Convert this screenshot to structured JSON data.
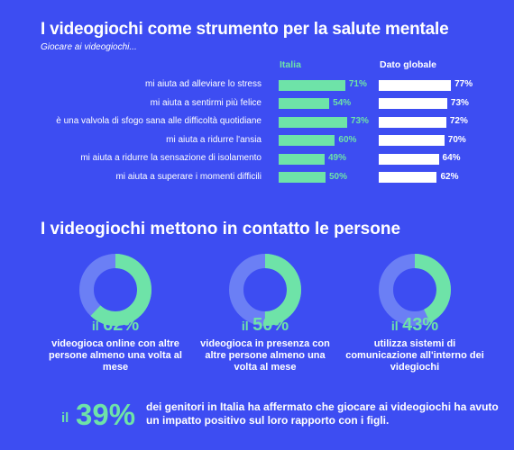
{
  "header": {
    "title": "I videogiochi come strumento per la salute mentale",
    "subtitle": "Giocare ai videogiochi..."
  },
  "chart_data": {
    "type": "bar",
    "series": [
      {
        "name": "Italia",
        "values": [
          71,
          54,
          73,
          60,
          49,
          50
        ],
        "labels": [
          "71%",
          "54%",
          "73%",
          "60%",
          "49%",
          "50%"
        ]
      },
      {
        "name": "Dato globale",
        "values": [
          77,
          73,
          72,
          70,
          64,
          62
        ],
        "labels": [
          "77%",
          "73%",
          "72%",
          "70%",
          "64%",
          "62%"
        ]
      }
    ],
    "categories": [
      "mi aiuta ad alleviare lo stress",
      "mi aiuta a sentirmi più felice",
      "è una valvola di sfogo sana alle difficoltà quotidiane",
      "mi aiuta a ridurre l'ansia",
      "mi aiuta a ridurre la sensazione di isolamento",
      "mi aiuta a superare i momenti difficili"
    ],
    "colors": {
      "italia": "#6ee3a8",
      "globale": "#ffffff"
    }
  },
  "section2": {
    "title": "I videogiochi mettono in contatto le persone",
    "stats": [
      {
        "prefix": "il",
        "pct": "62%",
        "value": 62,
        "desc": "videogioca online con altre persone almeno una volta al mese"
      },
      {
        "prefix": "il",
        "pct": "50%",
        "value": 50,
        "desc": "videogioca in presenza con altre persone almeno una volta al mese"
      },
      {
        "prefix": "il",
        "pct": "43%",
        "value": 43,
        "desc": "utilizza sistemi di comunicazione all'interno dei videgiochi"
      }
    ]
  },
  "bottom": {
    "prefix": "il",
    "pct": "39%",
    "text": "dei genitori in Italia ha affermato che giocare ai videogiochi ha avuto un impatto positivo sul loro rapporto con i figli."
  },
  "colors": {
    "background": "#3d4df2",
    "accent": "#6ee3a8",
    "donut_track": "#6b7ff5"
  }
}
